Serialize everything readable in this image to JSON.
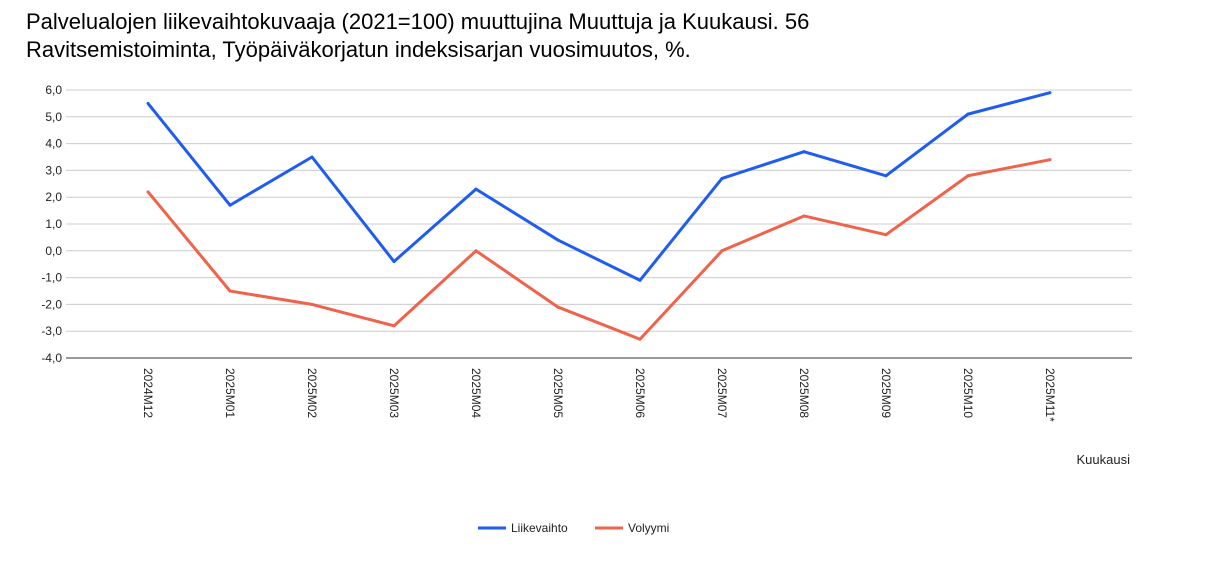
{
  "chart_data": {
    "type": "line",
    "title_line1": "Palvelualojen liikevaihtokuvaaja (2021=100) muuttujina Muuttuja ja Kuukausi. 56",
    "title_line2": "Ravitsemistoiminta, Työpäiväkorjatun indeksisarjan vuosimuutos, %.",
    "xlabel": "Kuukausi",
    "ylabel": "",
    "ylim": [
      -4,
      6
    ],
    "yticks": [
      6,
      5,
      4,
      3,
      2,
      1,
      0,
      -1,
      -2,
      -3,
      -4
    ],
    "ytick_labels": [
      "6,0",
      "5,0",
      "4,0",
      "3,0",
      "2,0",
      "1,0",
      "0,0",
      "-1,0",
      "-2,0",
      "-3,0",
      "-4,0"
    ],
    "categories": [
      "2024M12",
      "2025M01",
      "2025M02",
      "2025M03",
      "2025M04",
      "2025M05",
      "2025M06",
      "2025M07",
      "2025M08",
      "2025M09",
      "2025M10",
      "2025M11*"
    ],
    "grid": true,
    "legend_position": "bottom-center",
    "series": [
      {
        "name": "Liikevaihto",
        "color": "#1f5cf0",
        "values": [
          5.5,
          1.7,
          3.5,
          -0.4,
          2.3,
          0.4,
          -1.1,
          2.7,
          3.7,
          2.8,
          5.1,
          5.9
        ]
      },
      {
        "name": "Volyymi",
        "color": "#f0634b",
        "values": [
          2.2,
          -1.5,
          -2.0,
          -2.8,
          0.0,
          -2.1,
          -3.3,
          0.0,
          1.3,
          0.6,
          2.8,
          3.4
        ]
      }
    ]
  }
}
